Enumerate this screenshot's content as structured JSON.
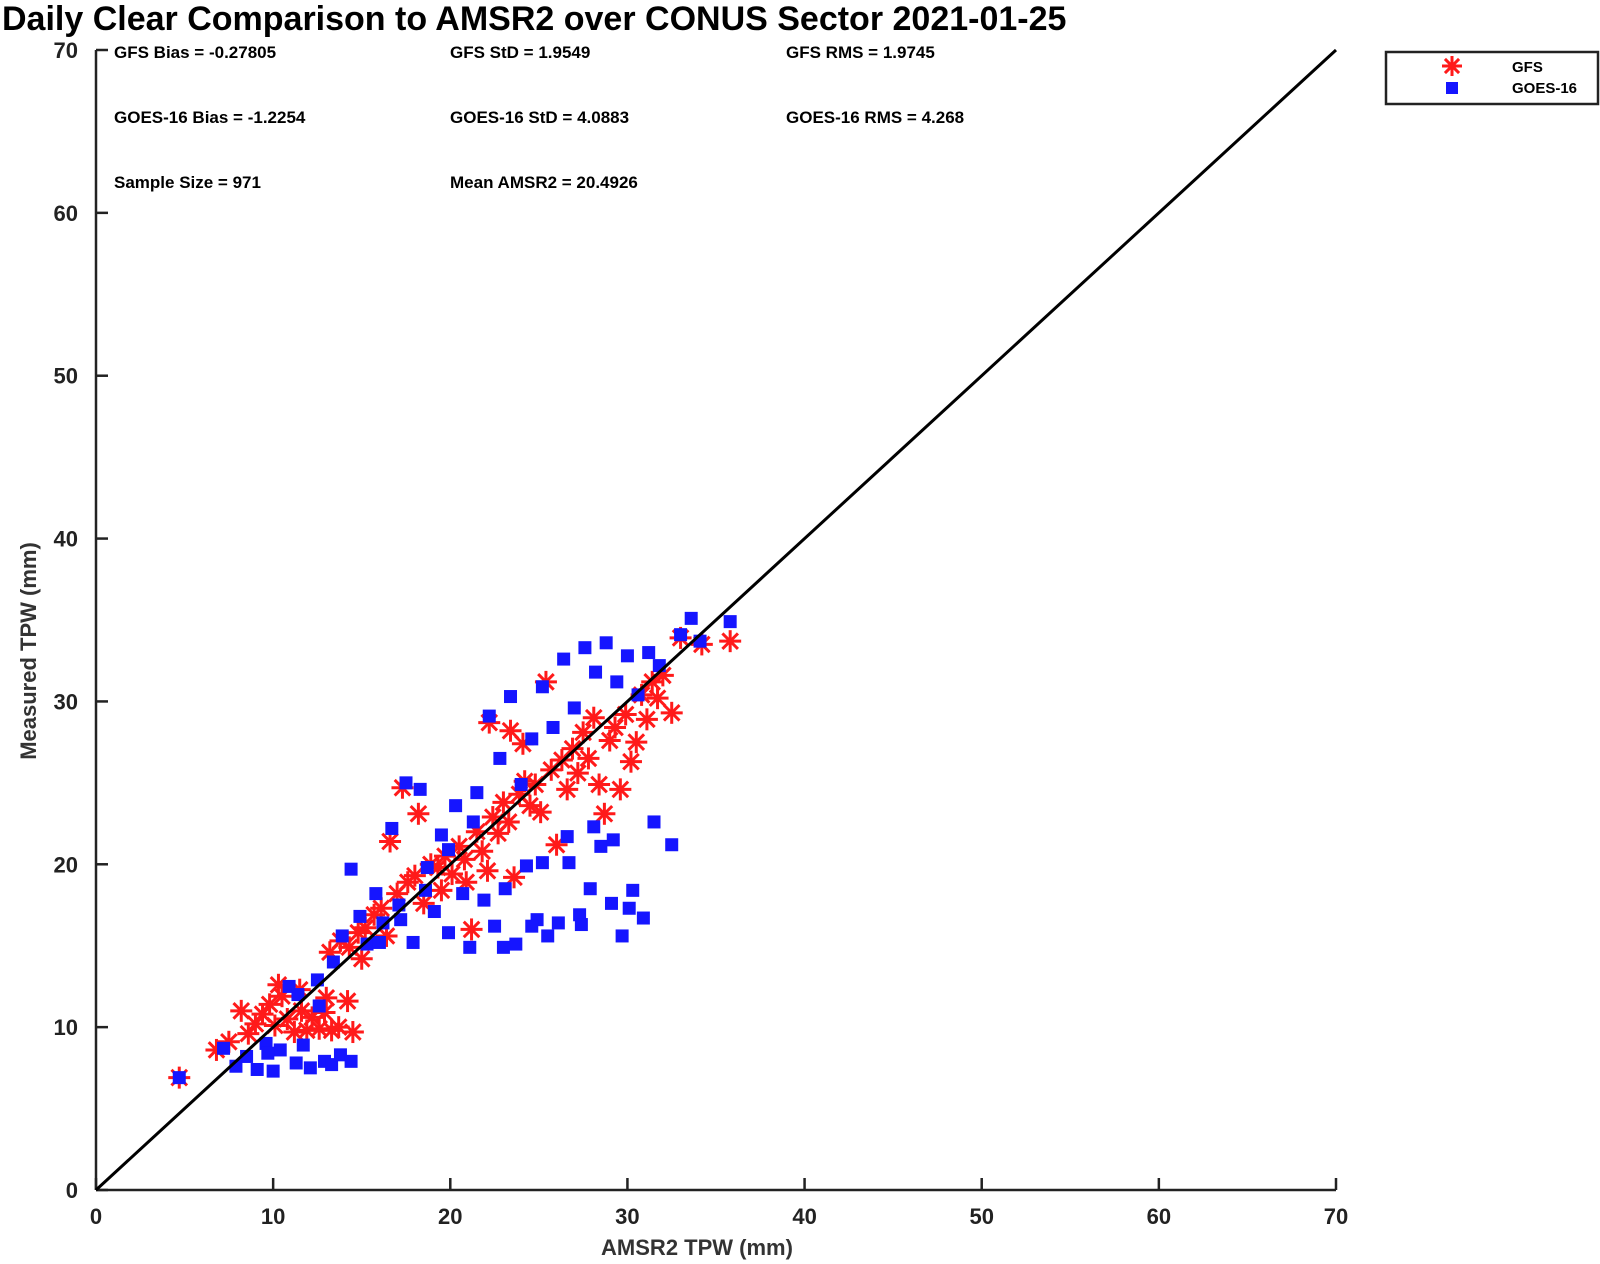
{
  "chart_data": {
    "type": "scatter",
    "title": "Daily Clear Comparison to AMSR2 over CONUS Sector 2021-01-25",
    "xlabel": "AMSR2 TPW (mm)",
    "ylabel": "Measured TPW (mm)",
    "xlim": [
      0,
      70
    ],
    "ylim": [
      0,
      70
    ],
    "x_ticks": [
      "0",
      "10",
      "20",
      "30",
      "40",
      "50",
      "60",
      "70"
    ],
    "y_ticks": [
      "0",
      "10",
      "20",
      "30",
      "40",
      "50",
      "60",
      "70"
    ],
    "grid": false,
    "legend_position": "outside top-right",
    "reference_line": {
      "type": "one-to-one",
      "from": [
        0,
        0
      ],
      "to": [
        70,
        70
      ],
      "color": "#000000"
    },
    "stats": [
      "GFS Bias = -0.27805",
      "GFS StD = 1.9549",
      "GFS RMS = 1.9745",
      "GOES-16 Bias = -1.2254",
      "GOES-16 StD = 4.0883",
      "GOES-16 RMS = 4.268",
      "Sample Size = 971",
      "Mean AMSR2 = 20.4926"
    ],
    "series": [
      {
        "name": "GFS",
        "marker": "asterisk",
        "color": "#ff1a1a",
        "points": [
          [
            4.7,
            6.9
          ],
          [
            6.8,
            8.6
          ],
          [
            7.5,
            9.1
          ],
          [
            8.2,
            11.0
          ],
          [
            8.6,
            9.6
          ],
          [
            9.0,
            10.2
          ],
          [
            9.4,
            10.8
          ],
          [
            9.8,
            11.4
          ],
          [
            10.1,
            10.1
          ],
          [
            10.5,
            11.9
          ],
          [
            10.8,
            10.5
          ],
          [
            11.2,
            9.7
          ],
          [
            11.5,
            12.3
          ],
          [
            11.9,
            9.8
          ],
          [
            12.2,
            10.6
          ],
          [
            12.6,
            9.9
          ],
          [
            13.0,
            11.8
          ],
          [
            13.3,
            9.8
          ],
          [
            13.7,
            10.0
          ],
          [
            14.2,
            11.6
          ],
          [
            14.5,
            9.7
          ],
          [
            13.2,
            14.6
          ],
          [
            13.8,
            15.3
          ],
          [
            14.3,
            14.9
          ],
          [
            14.8,
            15.8
          ],
          [
            15.2,
            16.1
          ],
          [
            15.7,
            16.9
          ],
          [
            16.1,
            17.3
          ],
          [
            16.6,
            21.4
          ],
          [
            17.0,
            18.2
          ],
          [
            17.3,
            24.7
          ],
          [
            17.6,
            18.9
          ],
          [
            18.0,
            19.3
          ],
          [
            18.2,
            23.1
          ],
          [
            18.5,
            17.6
          ],
          [
            18.9,
            20.0
          ],
          [
            19.3,
            19.8
          ],
          [
            19.7,
            20.5
          ],
          [
            20.1,
            19.4
          ],
          [
            20.5,
            21.1
          ],
          [
            20.8,
            20.3
          ],
          [
            21.2,
            16.0
          ],
          [
            21.5,
            22.0
          ],
          [
            21.8,
            20.8
          ],
          [
            22.1,
            19.6
          ],
          [
            22.4,
            22.9
          ],
          [
            22.7,
            21.9
          ],
          [
            23.0,
            23.8
          ],
          [
            23.3,
            22.6
          ],
          [
            23.6,
            19.2
          ],
          [
            23.9,
            24.3
          ],
          [
            24.2,
            25.1
          ],
          [
            24.5,
            23.6
          ],
          [
            24.8,
            24.9
          ],
          [
            25.1,
            23.2
          ],
          [
            25.4,
            31.2
          ],
          [
            25.7,
            25.8
          ],
          [
            26.0,
            21.2
          ],
          [
            26.3,
            26.4
          ],
          [
            26.6,
            24.6
          ],
          [
            26.9,
            27.1
          ],
          [
            27.2,
            25.6
          ],
          [
            27.5,
            28.1
          ],
          [
            27.8,
            26.5
          ],
          [
            28.1,
            29.0
          ],
          [
            28.4,
            24.9
          ],
          [
            28.7,
            23.1
          ],
          [
            29.0,
            27.6
          ],
          [
            29.3,
            28.4
          ],
          [
            29.6,
            24.6
          ],
          [
            29.9,
            29.2
          ],
          [
            30.2,
            26.3
          ],
          [
            30.5,
            27.5
          ],
          [
            30.8,
            30.4
          ],
          [
            31.1,
            28.9
          ],
          [
            31.4,
            31.2
          ],
          [
            31.7,
            30.2
          ],
          [
            32.0,
            31.6
          ],
          [
            32.5,
            29.3
          ],
          [
            33.0,
            33.9
          ],
          [
            34.2,
            33.5
          ],
          [
            35.8,
            33.7
          ],
          [
            22.2,
            28.7
          ],
          [
            23.4,
            28.2
          ],
          [
            24.1,
            27.4
          ],
          [
            19.5,
            18.4
          ],
          [
            20.9,
            18.9
          ],
          [
            16.4,
            15.6
          ],
          [
            15.0,
            14.2
          ],
          [
            10.3,
            12.6
          ],
          [
            11.6,
            11.0
          ],
          [
            12.9,
            10.9
          ]
        ]
      },
      {
        "name": "GOES-16",
        "marker": "square",
        "color": "#1515ff",
        "points": [
          [
            4.7,
            6.9
          ],
          [
            7.2,
            8.7
          ],
          [
            7.9,
            7.6
          ],
          [
            8.5,
            8.2
          ],
          [
            9.1,
            7.4
          ],
          [
            9.6,
            9.0
          ],
          [
            10.0,
            7.3
          ],
          [
            10.4,
            8.6
          ],
          [
            10.9,
            12.5
          ],
          [
            11.3,
            7.8
          ],
          [
            11.7,
            8.9
          ],
          [
            12.1,
            7.5
          ],
          [
            12.5,
            12.9
          ],
          [
            12.9,
            7.9
          ],
          [
            13.3,
            7.7
          ],
          [
            13.8,
            8.3
          ],
          [
            14.4,
            7.9
          ],
          [
            13.4,
            14.0
          ],
          [
            13.9,
            15.6
          ],
          [
            14.4,
            19.7
          ],
          [
            14.9,
            16.8
          ],
          [
            15.3,
            15.1
          ],
          [
            15.8,
            18.2
          ],
          [
            16.2,
            16.4
          ],
          [
            16.7,
            22.2
          ],
          [
            17.1,
            17.5
          ],
          [
            17.5,
            25.0
          ],
          [
            17.9,
            15.2
          ],
          [
            18.3,
            24.6
          ],
          [
            18.7,
            19.8
          ],
          [
            19.1,
            17.1
          ],
          [
            19.5,
            21.8
          ],
          [
            19.9,
            15.8
          ],
          [
            20.3,
            23.6
          ],
          [
            20.7,
            18.2
          ],
          [
            21.1,
            14.9
          ],
          [
            21.5,
            24.4
          ],
          [
            21.9,
            17.8
          ],
          [
            22.2,
            29.1
          ],
          [
            22.5,
            16.2
          ],
          [
            22.8,
            26.5
          ],
          [
            23.1,
            18.5
          ],
          [
            23.4,
            30.3
          ],
          [
            23.7,
            15.1
          ],
          [
            24.0,
            24.9
          ],
          [
            24.3,
            19.9
          ],
          [
            24.6,
            27.7
          ],
          [
            24.9,
            16.6
          ],
          [
            25.2,
            30.9
          ],
          [
            25.5,
            15.6
          ],
          [
            25.8,
            28.4
          ],
          [
            26.1,
            16.4
          ],
          [
            26.4,
            32.6
          ],
          [
            26.7,
            20.1
          ],
          [
            27.0,
            29.6
          ],
          [
            27.3,
            16.9
          ],
          [
            27.6,
            33.3
          ],
          [
            27.9,
            18.5
          ],
          [
            28.2,
            31.8
          ],
          [
            28.5,
            21.1
          ],
          [
            28.8,
            33.6
          ],
          [
            29.1,
            17.6
          ],
          [
            29.4,
            31.2
          ],
          [
            29.7,
            15.6
          ],
          [
            30.0,
            32.8
          ],
          [
            30.3,
            18.4
          ],
          [
            30.6,
            30.4
          ],
          [
            30.9,
            16.7
          ],
          [
            31.2,
            33.0
          ],
          [
            31.5,
            22.6
          ],
          [
            31.8,
            32.2
          ],
          [
            32.5,
            21.2
          ],
          [
            33.0,
            34.1
          ],
          [
            33.6,
            35.1
          ],
          [
            34.1,
            33.7
          ],
          [
            35.8,
            34.9
          ],
          [
            29.2,
            21.5
          ],
          [
            28.1,
            22.3
          ],
          [
            26.6,
            21.7
          ],
          [
            25.2,
            20.1
          ],
          [
            23.0,
            14.9
          ],
          [
            24.6,
            16.2
          ],
          [
            27.4,
            16.3
          ],
          [
            30.1,
            17.3
          ],
          [
            21.3,
            22.6
          ],
          [
            19.9,
            20.9
          ],
          [
            18.6,
            18.4
          ],
          [
            17.2,
            16.6
          ],
          [
            16.0,
            15.2
          ],
          [
            12.6,
            11.3
          ],
          [
            11.4,
            12.0
          ],
          [
            9.7,
            8.4
          ]
        ]
      }
    ]
  }
}
